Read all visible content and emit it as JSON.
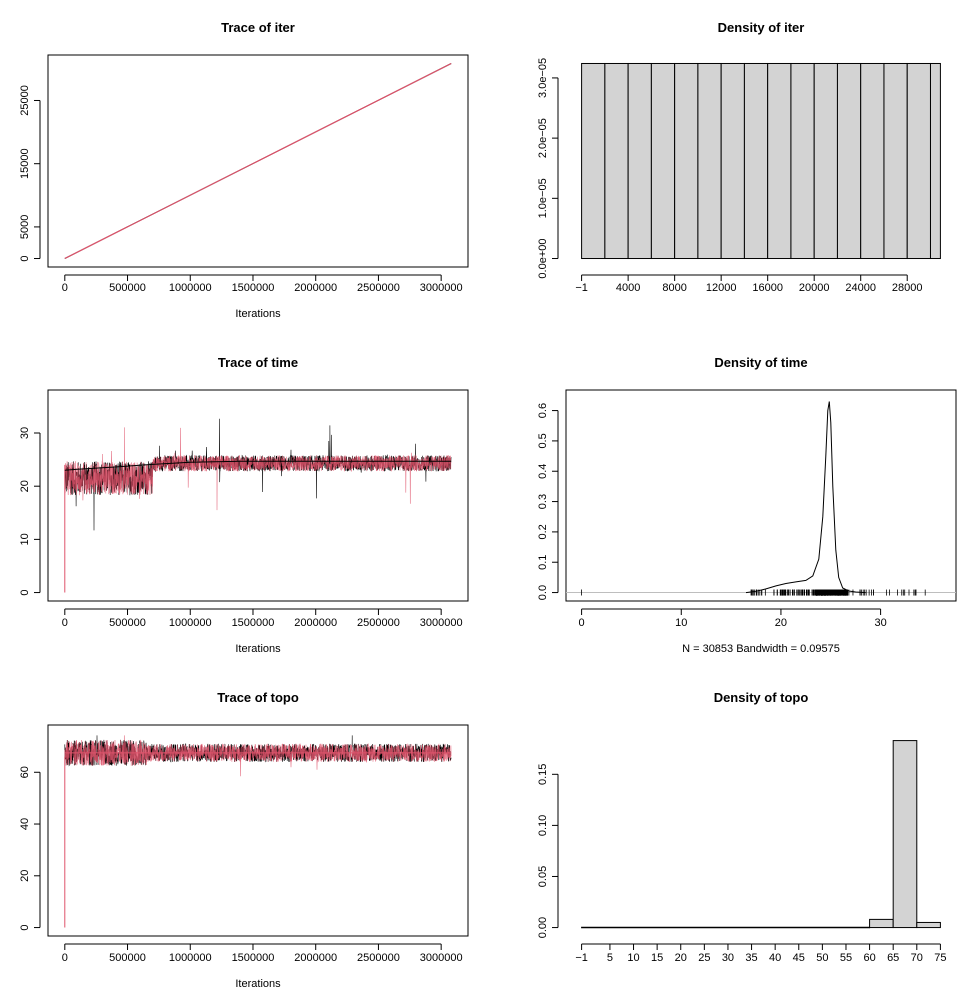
{
  "chart_data": [
    {
      "type": "line",
      "title": "Trace of iter",
      "xlabel": "Iterations",
      "ylabel": "",
      "xlim": [
        0,
        3080000
      ],
      "ylim": [
        0,
        30853
      ],
      "xticks": [
        0,
        500000,
        1000000,
        1500000,
        2000000,
        2500000,
        3000000
      ],
      "xtick_labels": [
        "0",
        "500000",
        "1000000",
        "1500000",
        "2000000",
        "2500000",
        "3000000"
      ],
      "yticks": [
        0,
        5000,
        15000,
        25000
      ],
      "ytick_labels": [
        "0",
        "5000",
        "15000",
        "25000"
      ],
      "series": [
        {
          "color": "#000000",
          "x": [
            0,
            3080000
          ],
          "y": [
            0,
            30853
          ]
        },
        {
          "color": "#DF536B",
          "x": [
            0,
            3080000
          ],
          "y": [
            0,
            30853
          ]
        }
      ]
    },
    {
      "type": "bar",
      "title": "Density of iter",
      "xlabel": "",
      "ylabel": "",
      "xlim": [
        -1,
        30853
      ],
      "ylim": [
        0,
        3.24e-05
      ],
      "xticks": [
        -1,
        4000,
        8000,
        12000,
        16000,
        20000,
        24000,
        28000
      ],
      "xtick_labels": [
        "−1",
        "4000",
        "8000",
        "12000",
        "16000",
        "20000",
        "24000",
        "28000"
      ],
      "yticks": [
        0,
        1e-05,
        2e-05,
        3e-05
      ],
      "ytick_labels": [
        "0.0e+00",
        "1.0e−05",
        "2.0e−05",
        "3.0e−05"
      ],
      "bin_edges": [
        -1,
        2000,
        4000,
        6000,
        8000,
        10000,
        12000,
        14000,
        16000,
        18000,
        20000,
        22000,
        24000,
        26000,
        28000,
        30000,
        30853
      ],
      "values": [
        3.24e-05,
        3.24e-05,
        3.24e-05,
        3.24e-05,
        3.24e-05,
        3.24e-05,
        3.24e-05,
        3.24e-05,
        3.24e-05,
        3.24e-05,
        3.24e-05,
        3.24e-05,
        3.24e-05,
        3.24e-05,
        3.24e-05,
        3.24e-05
      ]
    },
    {
      "type": "line",
      "title": "Trace of time",
      "xlabel": "Iterations",
      "ylabel": "",
      "xlim": [
        0,
        3080000
      ],
      "ylim": [
        0,
        36.5
      ],
      "xticks": [
        0,
        500000,
        1000000,
        1500000,
        2000000,
        2500000,
        3000000
      ],
      "xtick_labels": [
        "0",
        "500000",
        "1000000",
        "1500000",
        "2000000",
        "2500000",
        "3000000"
      ],
      "yticks": [
        0,
        10,
        20,
        30
      ],
      "ytick_labels": [
        "0",
        "10",
        "20",
        "30"
      ],
      "series": [
        {
          "color": "#000000",
          "x": [
            0,
            100000,
            400000,
            700000,
            1000000,
            1400000,
            1800000,
            2300000,
            3080000
          ],
          "y": [
            23,
            23.2,
            23.6,
            24.1,
            24.5,
            24.7,
            24.7,
            24.7,
            24.7
          ]
        }
      ]
    },
    {
      "type": "line",
      "title": "Density of time",
      "xlabel": "N = 30853   Bandwidth = 0.09575",
      "ylabel": "",
      "xlim": [
        0,
        36
      ],
      "ylim": [
        0,
        0.64
      ],
      "xticks": [
        0,
        10,
        20,
        30
      ],
      "xtick_labels": [
        "0",
        "10",
        "20",
        "30"
      ],
      "yticks": [
        0,
        0.1,
        0.2,
        0.3,
        0.4,
        0.5,
        0.6
      ],
      "ytick_labels": [
        "0.0",
        "0.1",
        "0.2",
        "0.3",
        "0.4",
        "0.5",
        "0.6"
      ],
      "series": [
        {
          "color": "#000000",
          "x": [
            16.5,
            17.5,
            18.5,
            19.5,
            20.5,
            21.5,
            22.5,
            23.2,
            23.8,
            24.2,
            24.5,
            24.7,
            24.85,
            25.0,
            25.2,
            25.5,
            25.8,
            26.2,
            26.8,
            27.5,
            28.5
          ],
          "y": [
            0.0,
            0.004,
            0.012,
            0.022,
            0.03,
            0.035,
            0.04,
            0.055,
            0.11,
            0.25,
            0.45,
            0.6,
            0.63,
            0.56,
            0.35,
            0.14,
            0.05,
            0.015,
            0.005,
            0.002,
            0.0
          ]
        }
      ]
    },
    {
      "type": "line",
      "title": "Trace of topo",
      "xlabel": "Iterations",
      "ylabel": "",
      "xlim": [
        0,
        3080000
      ],
      "ylim": [
        0,
        75
      ],
      "xticks": [
        0,
        500000,
        1000000,
        1500000,
        2000000,
        2500000,
        3000000
      ],
      "xtick_labels": [
        "0",
        "500000",
        "1000000",
        "1500000",
        "2000000",
        "2500000",
        "3000000"
      ],
      "yticks": [
        0,
        20,
        40,
        60
      ],
      "ytick_labels": [
        "0",
        "20",
        "40",
        "60"
      ],
      "series": [
        {
          "color": "#000000",
          "x": [
            0,
            3080000
          ],
          "y": [
            67.5,
            67.5
          ]
        }
      ]
    },
    {
      "type": "bar",
      "title": "Density of topo",
      "xlabel": "",
      "ylabel": "",
      "xlim": [
        -1,
        75
      ],
      "ylim": [
        0,
        0.19
      ],
      "xticks": [
        -1,
        5,
        10,
        15,
        20,
        25,
        30,
        35,
        40,
        45,
        50,
        55,
        60,
        65,
        70,
        75
      ],
      "xtick_labels": [
        "−1",
        "5",
        "10",
        "15",
        "20",
        "25",
        "30",
        "35",
        "40",
        "45",
        "50",
        "55",
        "60",
        "65",
        "70",
        "75"
      ],
      "yticks": [
        0,
        0.05,
        0.1,
        0.15
      ],
      "ytick_labels": [
        "0.00",
        "0.05",
        "0.10",
        "0.15"
      ],
      "bin_edges": [
        -1,
        60,
        65,
        70,
        75
      ],
      "values": [
        0.0003,
        0.008,
        0.183,
        0.005
      ]
    }
  ]
}
